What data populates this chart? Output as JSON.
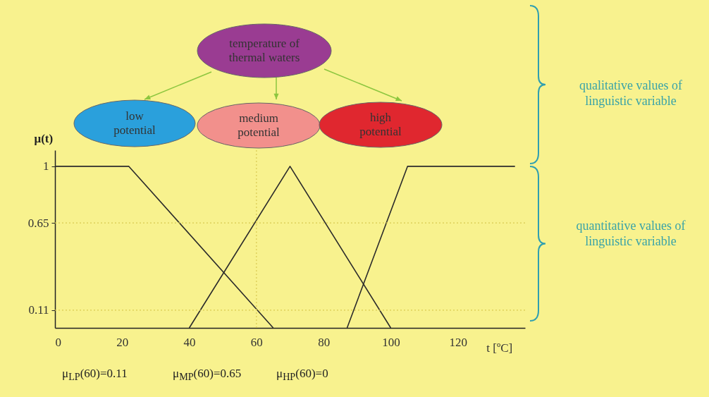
{
  "chart_data": {
    "type": "line",
    "xlabel": "t [ºC]",
    "ylabel": "μ(t)",
    "xlim": [
      0,
      140
    ],
    "xticks": [
      0,
      20,
      40,
      60,
      80,
      100,
      120
    ],
    "ylim": [
      0,
      1.1
    ],
    "yticks": [
      0.11,
      0.65,
      1
    ],
    "series": [
      {
        "color": "#2b2b2b",
        "x": [
          0,
          22,
          65
        ],
        "values": [
          1,
          1,
          0
        ]
      },
      {
        "color": "#2b2b2b",
        "x": [
          40,
          70,
          100
        ],
        "values": [
          0,
          1,
          0
        ]
      },
      {
        "color": "#2b2b2b",
        "x": [
          87,
          105,
          137
        ],
        "values": [
          0,
          1,
          1
        ]
      }
    ],
    "ref_lines": [
      {
        "axis": "y",
        "value": 0.65,
        "color": "#d8c950",
        "line_style": "dotted"
      },
      {
        "axis": "y",
        "value": 0.11,
        "color": "#d8c950",
        "line_style": "dotted"
      },
      {
        "axis": "x",
        "value": 60,
        "color": "#d8c950",
        "line_style": "dotted"
      }
    ],
    "grid": false,
    "marker": "none",
    "line_style": "solid",
    "annotations": [
      "temperature of thermal waters",
      "low potential",
      "medium potential",
      "high potential",
      "qualitative values of linguistic variable",
      "quantitative values of linguistic variable",
      "μ$_{LP}$(60)=0.11",
      "μ$_{MP}$(60)=0.65",
      "μ$_{HP}$(60)=0"
    ]
  }
}
